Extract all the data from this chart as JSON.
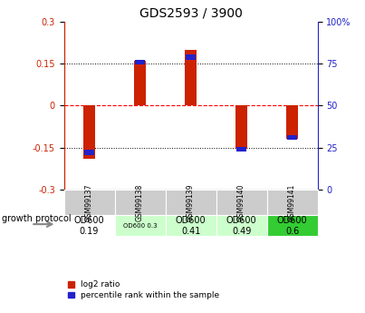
{
  "title": "GDS2593 / 3900",
  "samples": [
    "GSM99137",
    "GSM99138",
    "GSM99139",
    "GSM99140",
    "GSM99141"
  ],
  "log2_ratio": [
    -0.19,
    0.16,
    0.2,
    -0.155,
    -0.12
  ],
  "percentile_rank": [
    22,
    76,
    79,
    24,
    31
  ],
  "ylim": [
    -0.3,
    0.3
  ],
  "yticks_left": [
    -0.3,
    -0.15,
    0,
    0.15,
    0.3
  ],
  "yticks_right": [
    0,
    25,
    50,
    75,
    100
  ],
  "yticks_right_labels": [
    "0",
    "25",
    "50",
    "75",
    "100%"
  ],
  "bar_color_red": "#cc2200",
  "bar_color_blue": "#2222cc",
  "bar_width": 0.22,
  "bg_color": "#ffffff",
  "protocol_values": [
    "OD600\n0.19",
    "OD600 0.3",
    "OD600\n0.41",
    "OD600\n0.49",
    "OD600\n0.6"
  ],
  "protocol_colors": [
    "#ffffff",
    "#ccffcc",
    "#ccffcc",
    "#ccffcc",
    "#33cc33"
  ],
  "protocol_fontsize_small": [
    false,
    true,
    false,
    false,
    false
  ],
  "left_axis_color": "#cc2200",
  "right_axis_color": "#2222cc"
}
